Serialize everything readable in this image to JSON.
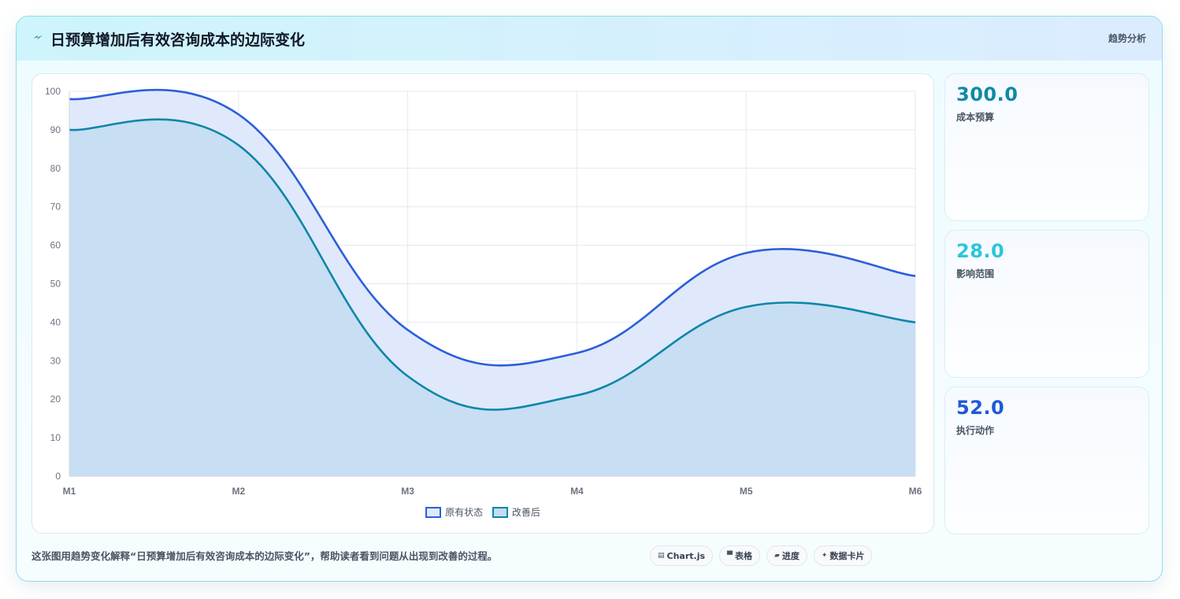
{
  "header": {
    "title": "日预算增加后有效咨询成本的边际变化",
    "tag": "趋势分析",
    "icon": "lightning-icon"
  },
  "chart_data": {
    "type": "area",
    "categories": [
      "M1",
      "M2",
      "M3",
      "M4",
      "M5",
      "M6"
    ],
    "series": [
      {
        "name": "原有状态",
        "values": [
          98,
          94,
          38,
          32,
          58,
          52
        ],
        "color": "#2b5fd9",
        "fill": "#dfe9fb"
      },
      {
        "name": "改善后",
        "values": [
          90,
          86,
          26,
          21,
          44,
          40
        ],
        "color": "#0e86a8",
        "fill": "#c3dcf1"
      }
    ],
    "ylim": [
      0,
      100
    ],
    "yticks": [
      0,
      10,
      20,
      30,
      40,
      50,
      60,
      70,
      80,
      90,
      100
    ],
    "grid": true,
    "legend": "bottom"
  },
  "stats": [
    {
      "value": "300.0",
      "label": "成本预算",
      "color": "#0f8aa5"
    },
    {
      "value": "28.0",
      "label": "影响范围",
      "color": "#2bc6dc"
    },
    {
      "value": "52.0",
      "label": "执行动作",
      "color": "#2059d6"
    }
  ],
  "caption": "这张图用趋势变化解释“日预算增加后有效咨询成本的边际变化”，帮助读者看到问题从出现到改善的过程。",
  "pills": [
    {
      "icon": "chart-icon",
      "glyph": "▤",
      "label": "Chart.js"
    },
    {
      "icon": "table-icon",
      "glyph": "▀",
      "label": "表格"
    },
    {
      "icon": "progress-icon",
      "glyph": "▰",
      "label": "进度"
    },
    {
      "icon": "sparkle-icon",
      "glyph": "✦",
      "label": "数据卡片"
    }
  ]
}
